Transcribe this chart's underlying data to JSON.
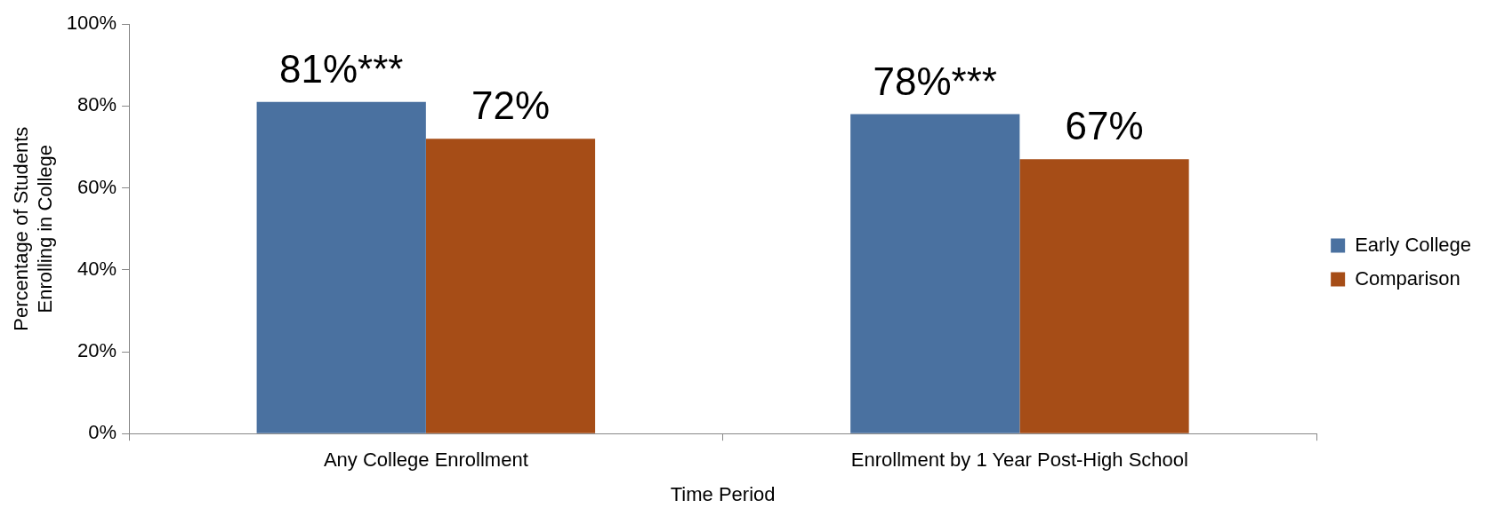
{
  "chart_data": {
    "type": "bar",
    "xlabel": "Time Period",
    "ylabel": "Percentage of Students Enrolling in College",
    "categories": [
      "Any College Enrollment",
      "Enrollment by 1 Year Post-High School"
    ],
    "series": [
      {
        "name": "Early College",
        "color": "#4a71a0",
        "values": [
          81,
          78
        ],
        "value_labels": [
          "81%***",
          "78%***"
        ]
      },
      {
        "name": "Comparison",
        "color": "#a64d17",
        "values": [
          72,
          67
        ],
        "value_labels": [
          "72%",
          "67%"
        ]
      }
    ],
    "ylim": [
      0,
      100
    ],
    "yticks": [
      {
        "value": 0,
        "label": "0%"
      },
      {
        "value": 20,
        "label": "20%"
      },
      {
        "value": 40,
        "label": "40%"
      },
      {
        "value": 60,
        "label": "60%"
      },
      {
        "value": 80,
        "label": "80%"
      },
      {
        "value": 100,
        "label": "100%"
      }
    ],
    "legend": "right"
  }
}
